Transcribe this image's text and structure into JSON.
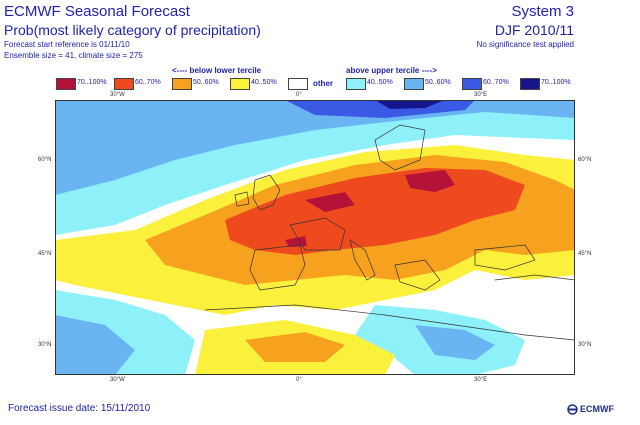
{
  "header": {
    "title": "ECMWF Seasonal Forecast",
    "subtitle": "Prob(most likely category of precipitation)",
    "start_ref": "Forecast start reference is 01/11/10",
    "ensemble": "Ensemble size = 41, climate size = 275",
    "system": "System 3",
    "period": "DJF 2010/11",
    "significance": "No significance test applied"
  },
  "legend": {
    "below_header": "<---- below lower tercile",
    "above_header": "above upper tercile ---->",
    "other_label": "other",
    "items": [
      {
        "label": "70..100%",
        "color": "#b5123a"
      },
      {
        "label": "60..70%",
        "color": "#ee4a1e"
      },
      {
        "label": "50..60%",
        "color": "#f7a21e"
      },
      {
        "label": "40..50%",
        "color": "#fbf13c"
      },
      {
        "label": "",
        "color": "#ffffff"
      },
      {
        "label": "40..50%",
        "color": "#8ef0f8"
      },
      {
        "label": "50..60%",
        "color": "#6ab4f2"
      },
      {
        "label": "60..70%",
        "color": "#3a5ae6"
      },
      {
        "label": "70..100%",
        "color": "#16168c"
      }
    ]
  },
  "map": {
    "lon_labels": [
      "30°W",
      "0°",
      "30°E"
    ],
    "lat_labels": [
      "60°N",
      "45°N",
      "30°N"
    ]
  },
  "footer": {
    "issue_date": "Forecast issue date: 15/11/2010",
    "logo_text": "ECMWF"
  }
}
